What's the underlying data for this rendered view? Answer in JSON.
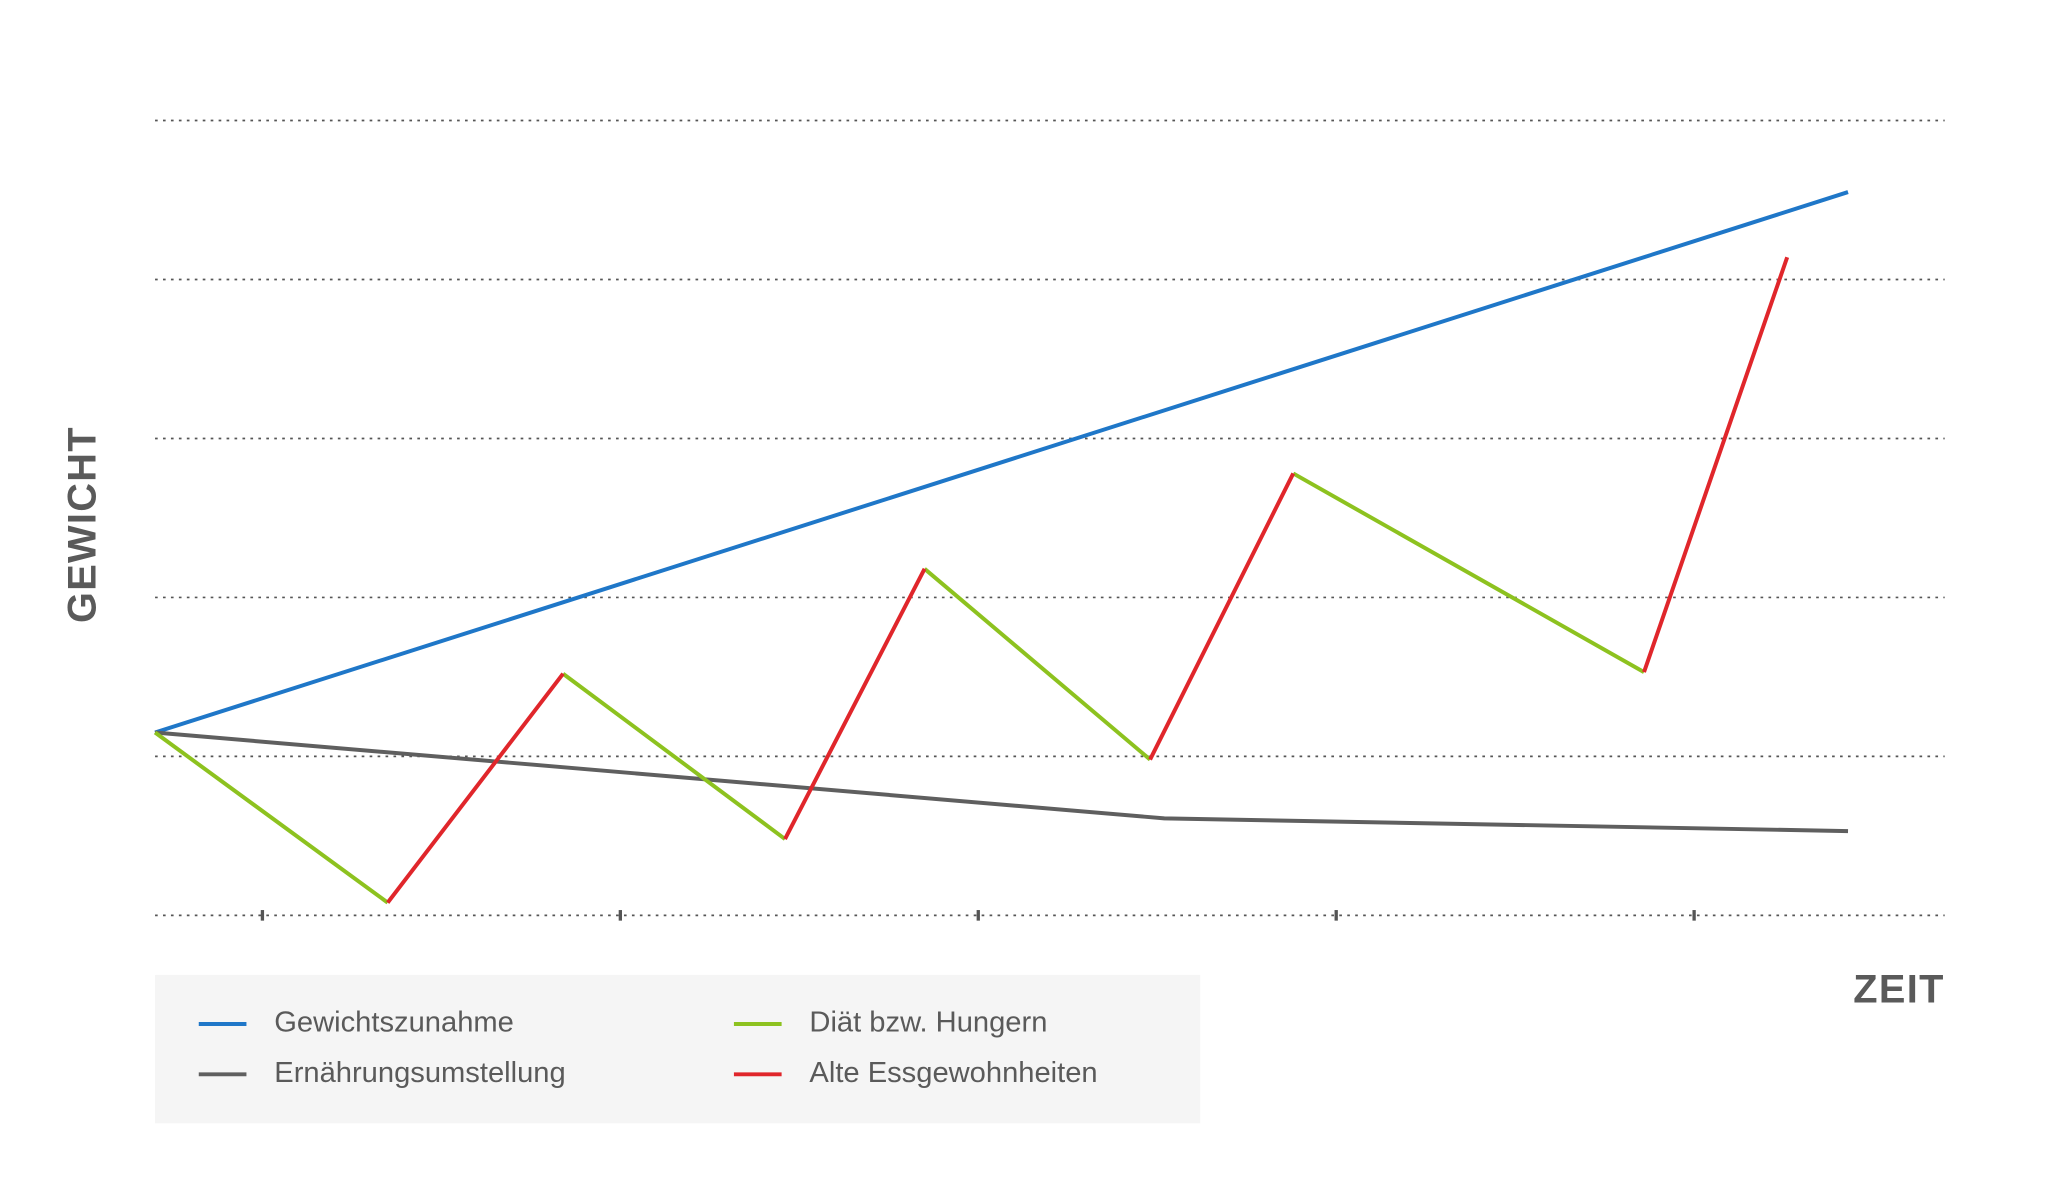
{
  "chart_data": {
    "type": "line",
    "y_label": "GEWICHT",
    "x_label": "ZEIT",
    "xlim": [
      0,
      5
    ],
    "xticks": [
      0.3,
      1.3,
      2.3,
      3.3,
      4.3
    ],
    "ylim": [
      0,
      5
    ],
    "yticks": [
      0,
      1,
      2,
      3,
      4,
      5
    ],
    "grid": true,
    "series": [
      {
        "name": "Gewichtszunahme",
        "color": "#1f77c8",
        "x": [
          0,
          4.73
        ],
        "values": [
          1.15,
          4.55
        ]
      },
      {
        "name": "Ernährungsumstellung",
        "color": "#5f5f5f",
        "x": [
          0,
          2.82,
          4.73
        ],
        "values": [
          1.15,
          0.61,
          0.53
        ]
      },
      {
        "name": "Diät bzw. Hungern",
        "color": "#8dc21f",
        "x": [
          0,
          0.65,
          null,
          1.14,
          1.76,
          null,
          2.15,
          2.78,
          null,
          3.18,
          4.16
        ],
        "values": [
          1.15,
          0.08,
          null,
          1.52,
          0.48,
          null,
          2.18,
          0.98,
          null,
          2.78,
          1.53
        ]
      },
      {
        "name": "Alte Essgewohnheiten",
        "color": "#e0262b",
        "x": [
          0.65,
          1.14,
          null,
          1.76,
          2.15,
          null,
          2.78,
          3.18,
          null,
          4.16,
          4.56
        ],
        "values": [
          0.08,
          1.52,
          null,
          0.48,
          2.18,
          null,
          0.98,
          2.78,
          null,
          1.53,
          4.14
        ]
      }
    ]
  }
}
